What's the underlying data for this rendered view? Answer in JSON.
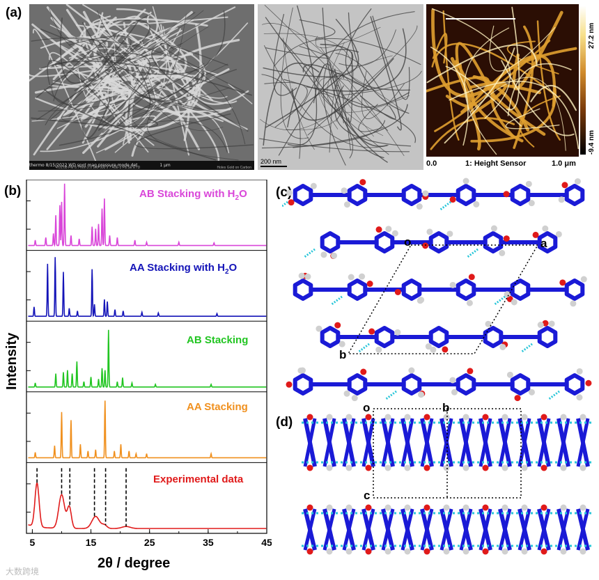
{
  "panel_labels": {
    "a": "(a)",
    "b": "(b)",
    "c": "(c)",
    "d": "(d)"
  },
  "sem": {
    "info_bar": "thermo  8/15/2022  WD  spot  mag  pressure  mode  det",
    "info_bar2": "4:01:08 PM  8.7 mm  2.0  100 000 x  7.40E-3 Pa  SE  ETD",
    "scale": "1 μm",
    "caption": "Holes Gold on Carbon"
  },
  "tem": {
    "scale": "200 nm"
  },
  "afm": {
    "x_start": "0.0",
    "channel": "1: Height Sensor",
    "x_end": "1.0 μm",
    "cbar_max": "27.2 nm",
    "cbar_min": "-9.4 nm"
  },
  "chart_data": {
    "type": "line",
    "xlabel": "2θ / degree",
    "ylabel": "Intensity",
    "xlim": [
      4,
      45
    ],
    "x_ticks": [
      5,
      15,
      25,
      35,
      45
    ],
    "series": [
      {
        "name": "AB Stacking with H2O",
        "color": "#d946d9",
        "peaks": [
          [
            5.5,
            0.08
          ],
          [
            7.3,
            0.12
          ],
          [
            8.6,
            0.18
          ],
          [
            9.0,
            0.45
          ],
          [
            9.7,
            0.6
          ],
          [
            10.0,
            0.65
          ],
          [
            10.5,
            0.92
          ],
          [
            11.6,
            0.15
          ],
          [
            13.0,
            0.1
          ],
          [
            15.2,
            0.28
          ],
          [
            15.8,
            0.25
          ],
          [
            16.3,
            0.32
          ],
          [
            16.9,
            0.55
          ],
          [
            17.3,
            0.7
          ],
          [
            18.2,
            0.15
          ],
          [
            19.5,
            0.12
          ],
          [
            22.5,
            0.08
          ],
          [
            24.5,
            0.05
          ],
          [
            30.0,
            0.05
          ],
          [
            36.0,
            0.04
          ]
        ]
      },
      {
        "name": "AA Stacking with H2O",
        "color": "#1414b8",
        "peaks": [
          [
            5.3,
            0.14
          ],
          [
            7.6,
            0.78
          ],
          [
            8.9,
            0.88
          ],
          [
            10.3,
            0.66
          ],
          [
            11.3,
            0.12
          ],
          [
            12.7,
            0.08
          ],
          [
            15.2,
            0.7
          ],
          [
            15.6,
            0.18
          ],
          [
            17.3,
            0.25
          ],
          [
            17.8,
            0.22
          ],
          [
            19.1,
            0.1
          ],
          [
            20.5,
            0.08
          ],
          [
            23.7,
            0.06
          ],
          [
            26.5,
            0.05
          ],
          [
            36.5,
            0.04
          ]
        ]
      },
      {
        "name": "AB Stacking",
        "color": "#22c522",
        "peaks": [
          [
            5.5,
            0.06
          ],
          [
            9.0,
            0.2
          ],
          [
            10.3,
            0.22
          ],
          [
            11.0,
            0.25
          ],
          [
            11.8,
            0.2
          ],
          [
            12.6,
            0.38
          ],
          [
            13.8,
            0.08
          ],
          [
            15.0,
            0.15
          ],
          [
            16.3,
            0.12
          ],
          [
            16.9,
            0.28
          ],
          [
            17.4,
            0.25
          ],
          [
            18.0,
            0.85
          ],
          [
            19.5,
            0.08
          ],
          [
            20.4,
            0.14
          ],
          [
            22.0,
            0.06
          ],
          [
            26.0,
            0.04
          ],
          [
            35.5,
            0.04
          ]
        ]
      },
      {
        "name": "AA Stacking",
        "color": "#f0901e",
        "peaks": [
          [
            5.5,
            0.08
          ],
          [
            8.8,
            0.18
          ],
          [
            10.0,
            0.68
          ],
          [
            11.6,
            0.56
          ],
          [
            13.2,
            0.2
          ],
          [
            14.5,
            0.1
          ],
          [
            15.8,
            0.12
          ],
          [
            17.4,
            0.85
          ],
          [
            19.0,
            0.1
          ],
          [
            20.1,
            0.2
          ],
          [
            21.5,
            0.1
          ],
          [
            22.7,
            0.06
          ],
          [
            24.5,
            0.06
          ],
          [
            35.5,
            0.06
          ]
        ]
      },
      {
        "name": "Experimental data",
        "color": "#e01a1a",
        "broad_peaks": [
          [
            5.8,
            0.65,
            0.5
          ],
          [
            10.0,
            0.5,
            0.7
          ],
          [
            11.3,
            0.32,
            0.5
          ],
          [
            15.8,
            0.18,
            0.9
          ],
          [
            17.3,
            0.05,
            0.6
          ],
          [
            21.0,
            0.03,
            1.0
          ]
        ]
      }
    ],
    "dashed_markers": [
      5.8,
      10.0,
      11.4,
      15.6,
      17.5,
      21.0
    ]
  },
  "structure_c": {
    "o": "o",
    "a": "a",
    "b": "b"
  },
  "structure_d": {
    "o": "o",
    "b": "b",
    "c": "c"
  },
  "watermark": "大数跨境",
  "colors": {
    "framework": "#1a1ad6",
    "oxygen": "#e01a1a",
    "hydrogen": "#d0d0d0",
    "hbond": "#29c6d9"
  }
}
